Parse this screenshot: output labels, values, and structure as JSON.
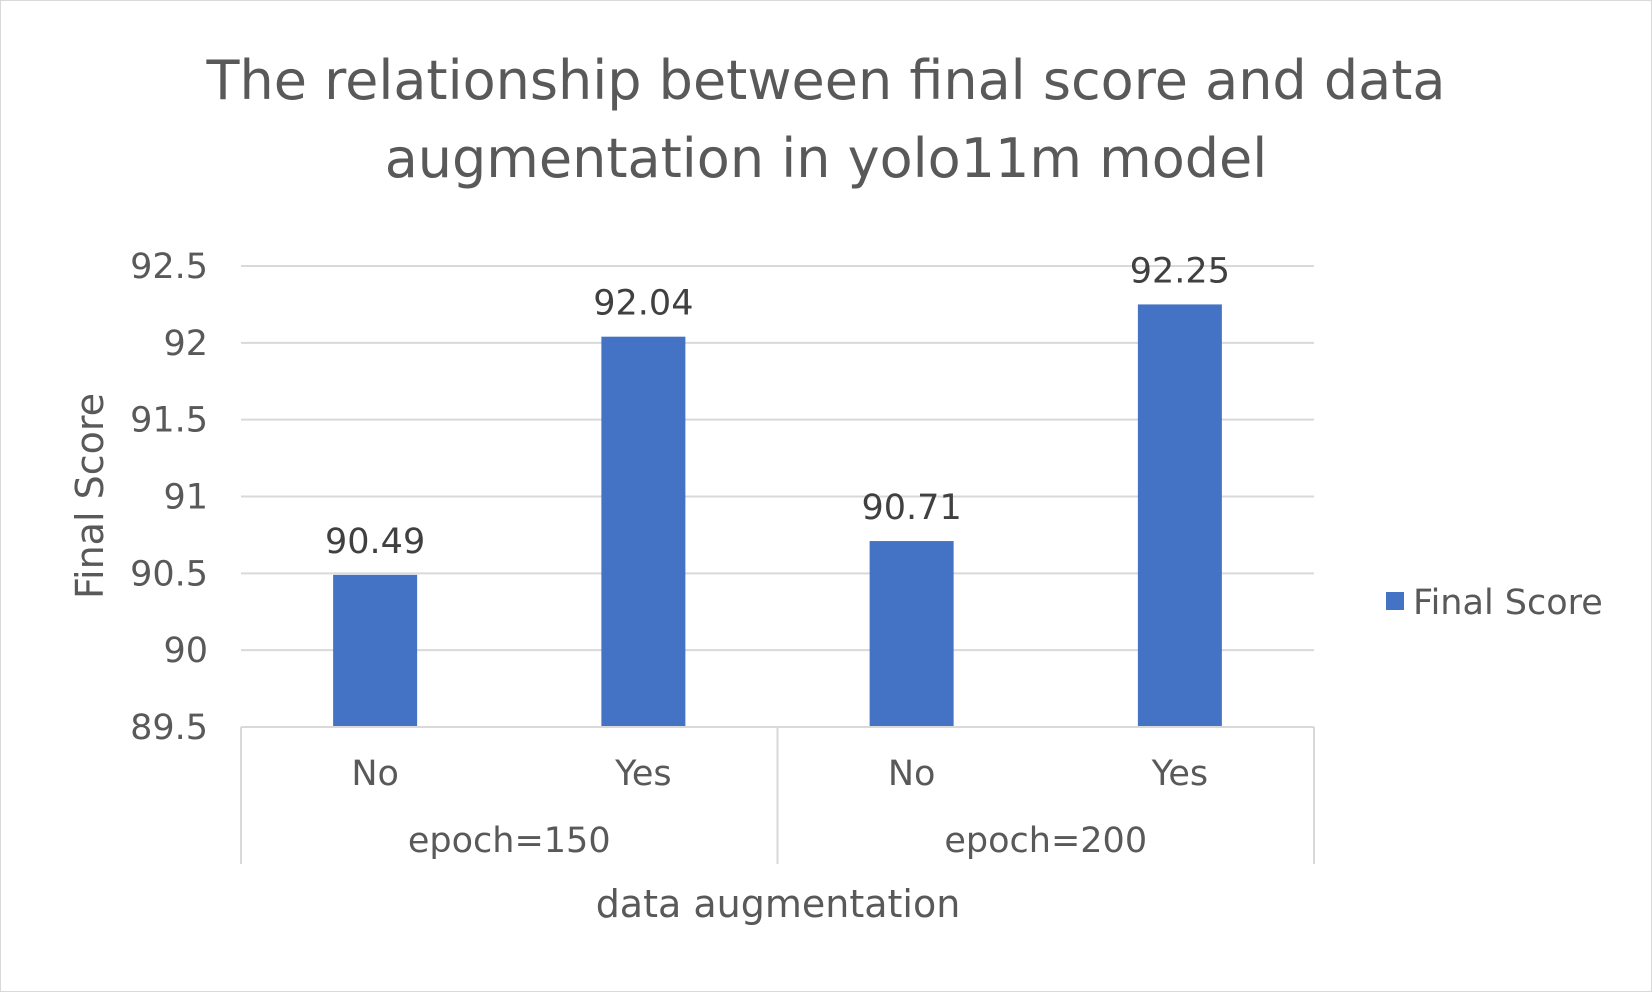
{
  "chart_data": {
    "type": "bar",
    "title": "The relationship between final score and data augmentation in yolo11m model",
    "title_lines": [
      "The relationship between final score and data",
      "augmentation in yolo11m model"
    ],
    "xlabel": "data augmentation",
    "ylabel": "Final Score",
    "groups": [
      {
        "label": "epoch=150",
        "categories": [
          "No",
          "Yes"
        ]
      },
      {
        "label": "epoch=200",
        "categories": [
          "No",
          "Yes"
        ]
      }
    ],
    "categories": [
      "No",
      "Yes",
      "No",
      "Yes"
    ],
    "series": [
      {
        "name": "Final Score",
        "values": [
          90.49,
          92.04,
          90.71,
          92.25
        ],
        "color": "#4472C4"
      }
    ],
    "data_labels": [
      "90.49",
      "92.04",
      "90.71",
      "92.25"
    ],
    "ylim": [
      89.5,
      92.5
    ],
    "yticks": [
      89.5,
      90,
      90.5,
      91,
      91.5,
      92,
      92.5
    ],
    "ytick_labels": [
      "89.5",
      "90",
      "90.5",
      "91",
      "91.5",
      "92",
      "92.5"
    ],
    "grid": true,
    "legend_position": "right",
    "colors": {
      "bar": "#4472C4",
      "grid": "#d9d9d9",
      "text": "#595959",
      "data_label": "#404040"
    }
  }
}
